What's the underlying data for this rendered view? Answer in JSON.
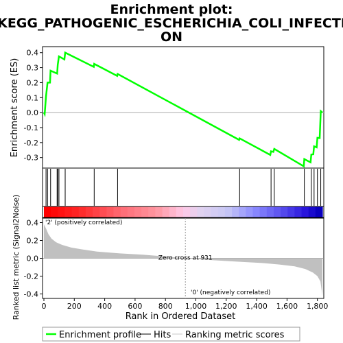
{
  "chart_data": {
    "type": "line",
    "title_lines": [
      "Enrichment plot:",
      "KEGG_PATHOGENIC_ESCHERICHIA_COLI_INFECTI",
      "ON"
    ],
    "es_panel": {
      "ylabel": "Enrichment score (ES)",
      "ylim": [
        -0.37,
        0.44
      ],
      "yticks": [
        0.4,
        0.3,
        0.2,
        0.1,
        0.0,
        -0.1,
        -0.2,
        -0.3
      ],
      "ytick_labels": [
        "0.4",
        "0.3",
        "0.2",
        "0.1",
        "0.0",
        "-0.1",
        "-0.2",
        "-0.3"
      ],
      "line_color": "#00ff00",
      "points": [
        [
          0,
          0.0
        ],
        [
          5,
          -0.01
        ],
        [
          14,
          0.11
        ],
        [
          24,
          0.2
        ],
        [
          40,
          0.2
        ],
        [
          44,
          0.28
        ],
        [
          87,
          0.26
        ],
        [
          91,
          0.32
        ],
        [
          99,
          0.375
        ],
        [
          135,
          0.355
        ],
        [
          140,
          0.4
        ],
        [
          328,
          0.305
        ],
        [
          331,
          0.325
        ],
        [
          482,
          0.245
        ],
        [
          485,
          0.258
        ],
        [
          1285,
          -0.182
        ],
        [
          1288,
          -0.172
        ],
        [
          1490,
          -0.282
        ],
        [
          1495,
          -0.258
        ],
        [
          1510,
          -0.262
        ],
        [
          1516,
          -0.242
        ],
        [
          1710,
          -0.358
        ],
        [
          1714,
          -0.31
        ],
        [
          1755,
          -0.332
        ],
        [
          1760,
          -0.28
        ],
        [
          1773,
          -0.278
        ],
        [
          1778,
          -0.225
        ],
        [
          1795,
          -0.232
        ],
        [
          1800,
          -0.168
        ],
        [
          1815,
          -0.17
        ],
        [
          1822,
          0.01
        ],
        [
          1833,
          0.0
        ]
      ]
    },
    "hits": [
      14,
      24,
      44,
      87,
      91,
      99,
      140,
      331,
      485,
      1288,
      1495,
      1516,
      1714,
      1760,
      1778,
      1800,
      1822
    ],
    "ranking_panel": {
      "ylabel": "Ranked list metric (Signal2Noise)",
      "ylim": [
        -0.45,
        0.45
      ],
      "yticks": [
        0.4,
        0.2,
        0.0,
        -0.2,
        -0.4
      ],
      "ytick_labels": [
        "0.4",
        "0.2",
        "0.0",
        "-0.2",
        "-0.4"
      ],
      "xlabel": "Rank in Ordered Dataset",
      "xlim": [
        0,
        1833
      ],
      "xticks": [
        0,
        200,
        400,
        600,
        800,
        1000,
        1200,
        1400,
        1600,
        1800
      ],
      "xtick_labels": [
        "0",
        "200",
        "400",
        "600",
        "800",
        "1,000",
        "1,200",
        "1,400",
        "1,600",
        "1,800"
      ],
      "zero_cross": 931,
      "zero_cross_label": "Zero cross at 931",
      "positive_label": "'2' (positively correlated)",
      "negative_label": "'0' (negatively correlated)",
      "positive_label_color": "#ff0000",
      "negative_label_color": "#0000ff",
      "metric_curve": [
        [
          0,
          0.38
        ],
        [
          15,
          0.33
        ],
        [
          30,
          0.27
        ],
        [
          50,
          0.22
        ],
        [
          80,
          0.18
        ],
        [
          120,
          0.15
        ],
        [
          180,
          0.12
        ],
        [
          250,
          0.1
        ],
        [
          350,
          0.075
        ],
        [
          500,
          0.055
        ],
        [
          650,
          0.04
        ],
        [
          800,
          0.02
        ],
        [
          931,
          0.0
        ],
        [
          1100,
          -0.02
        ],
        [
          1300,
          -0.04
        ],
        [
          1450,
          -0.055
        ],
        [
          1550,
          -0.07
        ],
        [
          1650,
          -0.09
        ],
        [
          1720,
          -0.12
        ],
        [
          1770,
          -0.16
        ],
        [
          1800,
          -0.2
        ],
        [
          1820,
          -0.26
        ],
        [
          1833,
          -0.42
        ]
      ]
    },
    "legend": {
      "entries": [
        "Enrichment profile",
        "Hits",
        "Ranking metric scores"
      ],
      "colors": [
        "#00ff00",
        "#000000",
        "#c8c8c8"
      ]
    }
  }
}
